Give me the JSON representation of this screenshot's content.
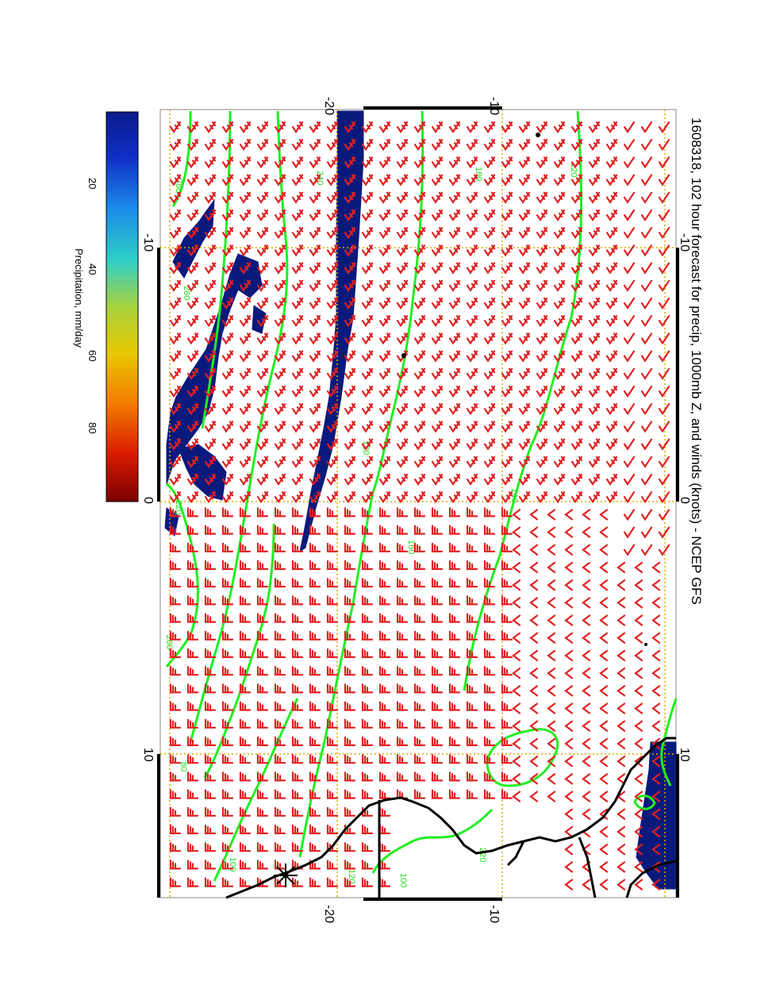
{
  "title": "1608318, 102 hour forecast for precip, 1000mb Z, and winds (knots) - NCEP GFS",
  "colorbar": {
    "label": "Precipitation, mm/day",
    "ticks": [
      "20",
      "40",
      "60",
      "80"
    ],
    "colors": [
      "#7a0000",
      "#d81a00",
      "#f47a00",
      "#e8c800",
      "#a8d23c",
      "#2ecfc8",
      "#1a8ce8",
      "#1030c8",
      "#0a1a8c"
    ]
  },
  "axes": {
    "lat_top_labels": [
      "-20",
      "-10"
    ],
    "lat_bottom_labels": [
      "-20",
      "-10"
    ],
    "lon_left_labels": [
      "-10",
      "0",
      "10"
    ],
    "lon_right_labels": [
      "-10",
      "0",
      "10"
    ]
  },
  "contour_labels": [
    "120",
    "140",
    "160",
    "180",
    "200",
    "220",
    "240",
    "260",
    "280",
    "80",
    "100",
    "120",
    "120",
    "100",
    "220"
  ],
  "colors": {
    "wind_barbs": "#e02020",
    "contours": "#22ee22",
    "precip": "#0a1a7c",
    "grid": "#e0a800",
    "coast": "#000000"
  }
}
